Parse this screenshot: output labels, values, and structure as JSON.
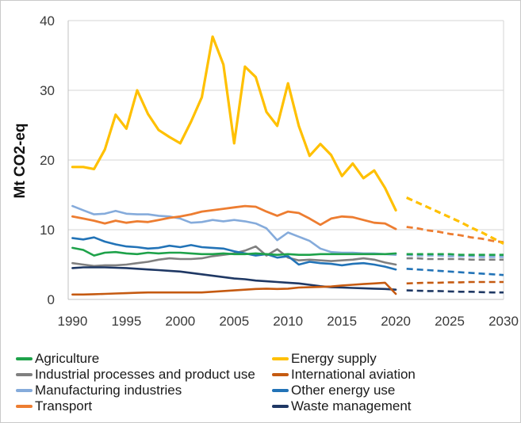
{
  "chart_data": {
    "type": "line",
    "title": "",
    "ylabel": "Mt CO2-eq",
    "xlabel": "",
    "ylim": [
      0,
      40
    ],
    "xlim": [
      1989.6,
      2030
    ],
    "yticks": [
      0,
      10,
      20,
      30,
      40
    ],
    "xticks": [
      1990,
      1995,
      2000,
      2005,
      2010,
      2015,
      2020,
      2025,
      2030
    ],
    "grid": "horizontal",
    "legend_position": "bottom, two columns",
    "line_style_note": "solid = 1990-2020 history, dashed = 2021-2030 projection",
    "years_solid": [
      1990,
      1991,
      1992,
      1993,
      1994,
      1995,
      1996,
      1997,
      1998,
      1999,
      2000,
      2001,
      2002,
      2003,
      2004,
      2005,
      2006,
      2007,
      2008,
      2009,
      2010,
      2011,
      2012,
      2013,
      2014,
      2015,
      2016,
      2017,
      2018,
      2019,
      2020
    ],
    "years_projection": [
      2021,
      2022,
      2023,
      2024,
      2025,
      2026,
      2027,
      2028,
      2029,
      2030
    ],
    "draw_order": [
      "Manufacturing industries",
      "Industrial processes and product use",
      "Other energy use",
      "Agriculture",
      "Waste management",
      "International aviation",
      "Transport",
      "Energy supply"
    ],
    "series": [
      {
        "name": "Agriculture",
        "color": "#1ea24a",
        "stroke_width": 2.6,
        "solid": [
          7.4,
          7.1,
          6.3,
          6.7,
          6.8,
          6.6,
          6.5,
          6.7,
          6.6,
          6.7,
          6.7,
          6.6,
          6.5,
          6.5,
          6.6,
          6.5,
          6.5,
          6.6,
          6.5,
          6.4,
          6.5,
          6.4,
          6.4,
          6.5,
          6.5,
          6.5,
          6.5,
          6.5,
          6.5,
          6.5,
          6.6
        ],
        "projection": [
          6.5,
          6.5,
          6.5,
          6.5,
          6.5,
          6.4,
          6.4,
          6.4,
          6.4,
          6.4
        ]
      },
      {
        "name": "Energy supply",
        "color": "#ffc000",
        "stroke_width": 3.2,
        "solid": [
          19.0,
          19.0,
          18.7,
          21.5,
          26.5,
          24.5,
          30.0,
          26.6,
          24.3,
          23.3,
          22.4,
          25.5,
          29.0,
          37.7,
          33.7,
          22.4,
          33.4,
          31.9,
          26.9,
          24.9,
          31.0,
          24.9,
          20.6,
          22.3,
          20.7,
          17.7,
          19.5,
          17.4,
          18.5,
          16.0,
          12.8
        ],
        "projection": [
          14.6,
          13.9,
          13.2,
          12.5,
          11.8,
          11.1,
          10.3,
          9.6,
          8.8,
          8.0
        ]
      },
      {
        "name": "Industrial processes and product use",
        "color": "#808080",
        "stroke_width": 2.6,
        "solid": [
          5.2,
          5.0,
          4.8,
          4.9,
          4.9,
          5.0,
          5.2,
          5.4,
          5.7,
          5.9,
          5.8,
          5.8,
          5.9,
          6.2,
          6.4,
          6.6,
          7.0,
          7.6,
          6.3,
          7.2,
          6.0,
          5.6,
          5.7,
          5.6,
          5.5,
          5.6,
          5.7,
          5.9,
          5.7,
          5.3,
          5.0
        ],
        "projection": [
          5.9,
          5.9,
          5.8,
          5.8,
          5.8,
          5.8,
          5.7,
          5.7,
          5.7,
          5.7
        ]
      },
      {
        "name": "International aviation",
        "color": "#c55a11",
        "stroke_width": 2.6,
        "solid": [
          0.7,
          0.7,
          0.75,
          0.8,
          0.85,
          0.9,
          0.95,
          1.0,
          1.0,
          1.0,
          1.0,
          1.0,
          1.0,
          1.1,
          1.2,
          1.3,
          1.4,
          1.5,
          1.55,
          1.5,
          1.55,
          1.7,
          1.75,
          1.8,
          1.85,
          2.0,
          2.1,
          2.2,
          2.3,
          2.4,
          0.8
        ],
        "projection": [
          2.3,
          2.35,
          2.4,
          2.4,
          2.45,
          2.45,
          2.5,
          2.5,
          2.5,
          2.5
        ]
      },
      {
        "name": "Manufacturing industries",
        "color": "#85abdb",
        "stroke_width": 2.6,
        "solid": [
          13.4,
          12.8,
          12.2,
          12.3,
          12.7,
          12.3,
          12.2,
          12.2,
          12.0,
          11.9,
          11.6,
          11.0,
          11.1,
          11.4,
          11.2,
          11.4,
          11.2,
          10.9,
          10.2,
          8.5,
          9.6,
          9.0,
          8.4,
          7.3,
          6.8,
          6.7,
          6.7,
          6.6,
          6.6,
          6.5,
          6.4
        ],
        "projection": [
          6.4,
          6.3,
          6.3,
          6.3,
          6.2,
          6.2,
          6.2,
          6.1,
          6.1,
          6.1
        ]
      },
      {
        "name": "Other energy use",
        "color": "#2273b7",
        "stroke_width": 2.6,
        "solid": [
          8.8,
          8.6,
          8.9,
          8.3,
          7.9,
          7.6,
          7.5,
          7.3,
          7.4,
          7.7,
          7.5,
          7.8,
          7.5,
          7.4,
          7.3,
          6.9,
          6.6,
          6.3,
          6.5,
          6.0,
          6.2,
          5.0,
          5.4,
          5.2,
          5.1,
          4.9,
          5.1,
          5.2,
          5.0,
          4.7,
          4.3
        ],
        "projection": [
          4.4,
          4.3,
          4.2,
          4.1,
          4.0,
          3.9,
          3.8,
          3.7,
          3.6,
          3.5
        ]
      },
      {
        "name": "Transport",
        "color": "#ed7d31",
        "stroke_width": 2.8,
        "solid": [
          11.9,
          11.6,
          11.3,
          10.9,
          11.3,
          11.0,
          11.2,
          11.1,
          11.4,
          11.7,
          11.9,
          12.2,
          12.6,
          12.8,
          13.0,
          13.2,
          13.4,
          13.3,
          12.6,
          12.0,
          12.6,
          12.4,
          11.6,
          10.7,
          11.6,
          11.9,
          11.8,
          11.4,
          11.0,
          10.9,
          10.1
        ],
        "projection": [
          10.4,
          10.2,
          9.9,
          9.7,
          9.4,
          9.2,
          8.9,
          8.7,
          8.4,
          8.2
        ]
      },
      {
        "name": "Waste management",
        "color": "#1f3864",
        "stroke_width": 2.6,
        "solid": [
          4.5,
          4.6,
          4.6,
          4.6,
          4.55,
          4.5,
          4.4,
          4.3,
          4.2,
          4.1,
          4.0,
          3.8,
          3.6,
          3.4,
          3.2,
          3.0,
          2.9,
          2.7,
          2.6,
          2.5,
          2.4,
          2.3,
          2.1,
          1.9,
          1.75,
          1.7,
          1.65,
          1.6,
          1.55,
          1.5,
          1.4
        ],
        "projection": [
          1.3,
          1.25,
          1.2,
          1.2,
          1.15,
          1.1,
          1.1,
          1.05,
          1.0,
          1.0
        ]
      }
    ]
  }
}
